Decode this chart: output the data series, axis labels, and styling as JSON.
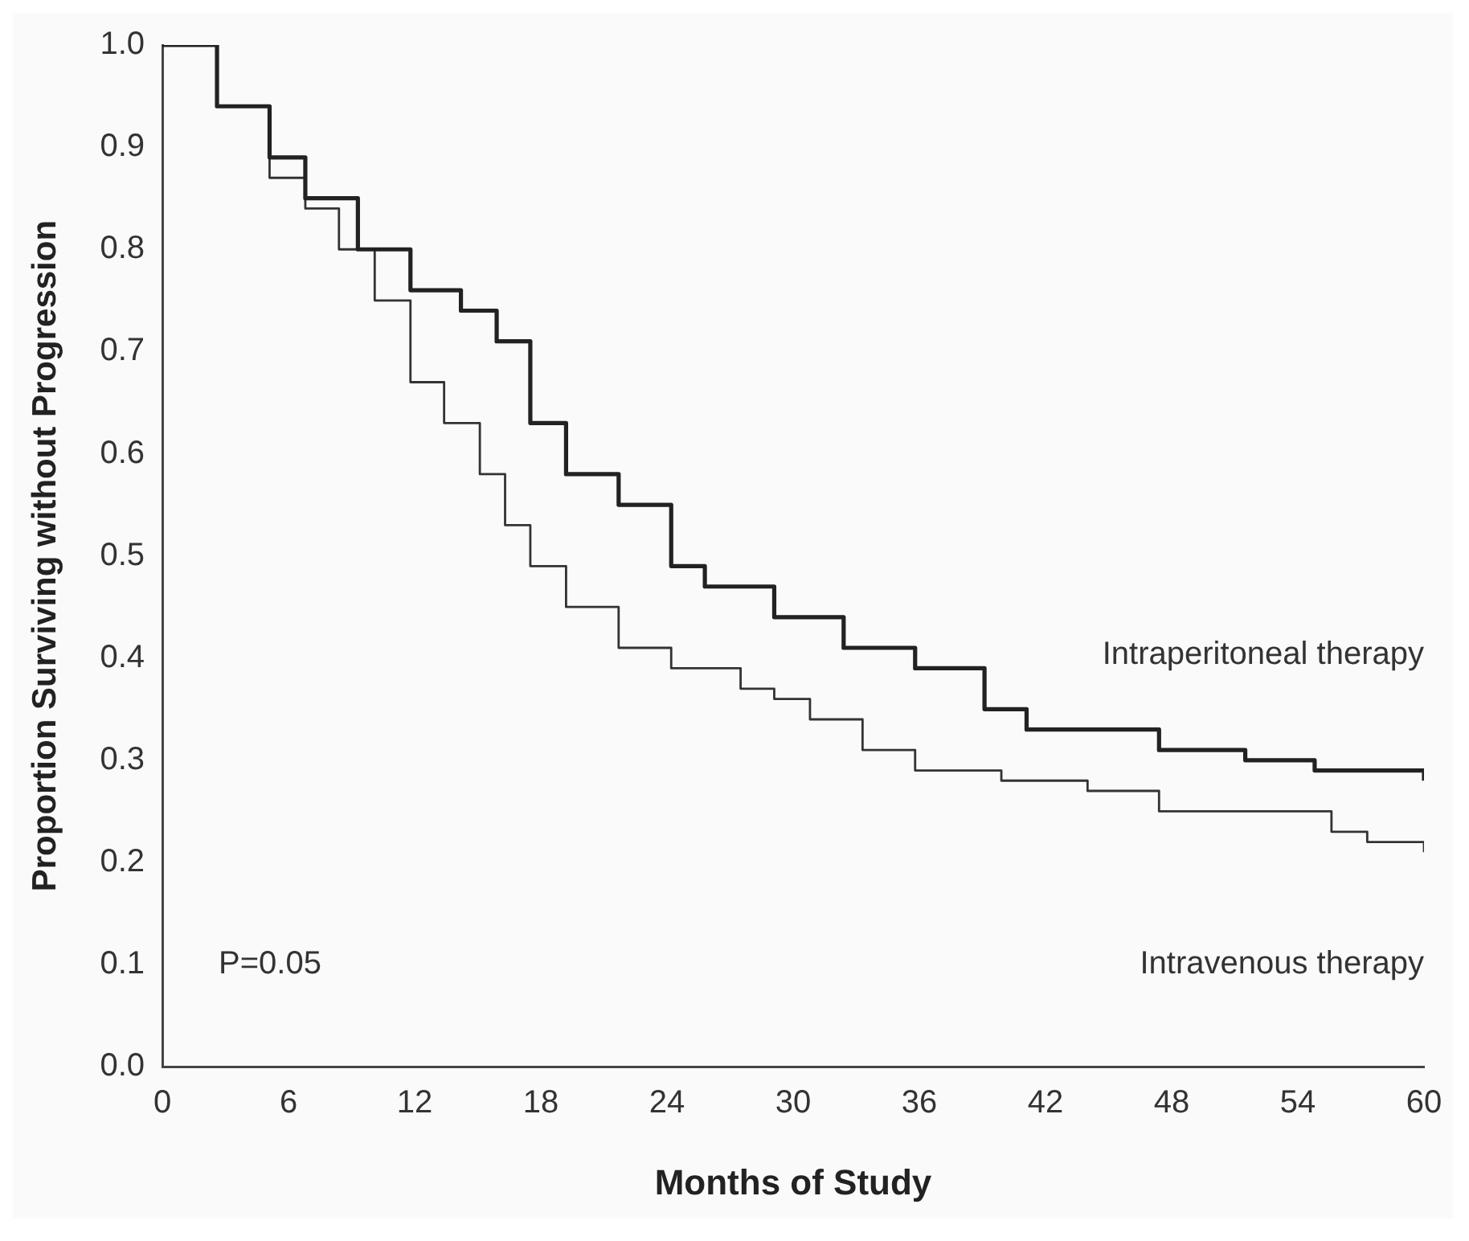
{
  "chart_data": {
    "type": "step",
    "xlabel": "Months of Study",
    "ylabel": "Proportion Surviving without Progression",
    "xlim": [
      0,
      60
    ],
    "ylim": [
      0,
      1
    ],
    "xticks": [
      0,
      6,
      12,
      18,
      24,
      30,
      36,
      42,
      48,
      54,
      60
    ],
    "yticks": [
      {
        "value": 0,
        "label": "0.0"
      },
      {
        "value": 0.1,
        "label": "0.1"
      },
      {
        "value": 0.2,
        "label": "0.2"
      },
      {
        "value": 0.3,
        "label": "0.3"
      },
      {
        "value": 0.4,
        "label": "0.4"
      },
      {
        "value": 0.5,
        "label": "0.5"
      },
      {
        "value": 0.6,
        "label": "0.6"
      },
      {
        "value": 0.7,
        "label": "0.7"
      },
      {
        "value": 0.8,
        "label": "0.8"
      },
      {
        "value": 0.9,
        "label": "0.9"
      },
      {
        "value": 1,
        "label": "1.0"
      }
    ],
    "grid": false,
    "legend": false,
    "marker": "none",
    "line_style": "solid",
    "annotations": [
      "P=0.05"
    ],
    "series": [
      {
        "name": "Intraperitoneal therapy",
        "color": "#222222",
        "x": [
          0,
          2.6,
          5.1,
          6.8,
          9.3,
          11.8,
          14.2,
          15.9,
          17.5,
          19.2,
          21.7,
          24.2,
          25.8,
          29.1,
          32.4,
          35.8,
          39.1,
          41.1,
          44,
          47.4,
          51.5,
          54.8,
          60
        ],
        "values": [
          1,
          0.94,
          0.89,
          0.85,
          0.8,
          0.76,
          0.74,
          0.71,
          0.63,
          0.58,
          0.55,
          0.49,
          0.47,
          0.44,
          0.41,
          0.39,
          0.35,
          0.33,
          0.33,
          0.31,
          0.3,
          0.29,
          0.28
        ]
      },
      {
        "name": "Intravenous therapy",
        "color": "#333333",
        "x": [
          0,
          2.6,
          5.1,
          6.8,
          8.4,
          10.1,
          11.8,
          13.4,
          15.1,
          16.3,
          17.5,
          19.2,
          21.7,
          24.2,
          27.5,
          29.1,
          30.8,
          33.3,
          35.8,
          39.9,
          44,
          47.4,
          53.1,
          55.6,
          57.3,
          60
        ],
        "values": [
          1,
          0.94,
          0.87,
          0.84,
          0.8,
          0.75,
          0.67,
          0.63,
          0.58,
          0.53,
          0.49,
          0.45,
          0.41,
          0.39,
          0.37,
          0.36,
          0.34,
          0.31,
          0.29,
          0.28,
          0.27,
          0.25,
          0.25,
          0.23,
          0.22,
          0.21
        ]
      }
    ]
  }
}
